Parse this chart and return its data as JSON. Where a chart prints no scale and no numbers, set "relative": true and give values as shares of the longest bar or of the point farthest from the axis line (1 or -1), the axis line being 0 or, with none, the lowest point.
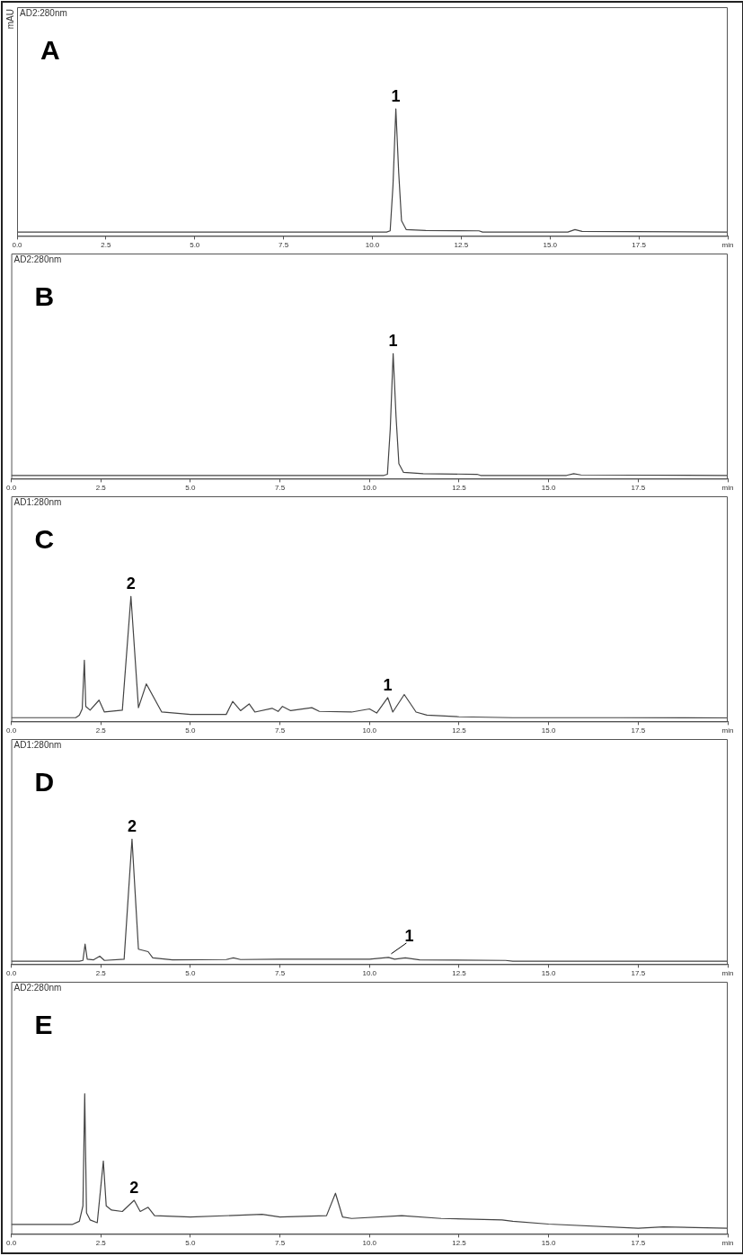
{
  "chart_data": [
    {
      "type": "line",
      "title": "A",
      "subtitle": "AD2:280nm",
      "ylabel": "mAU",
      "relative": true,
      "color": "#444444",
      "x": [
        0,
        10.4,
        10.5,
        10.58,
        10.66,
        10.74,
        10.82,
        10.95,
        11.5,
        13.0,
        13.1,
        15.5,
        15.7,
        15.9,
        20
      ],
      "values": [
        0.03,
        0.03,
        0.04,
        0.4,
        1,
        0.5,
        0.12,
        0.05,
        0.042,
        0.04,
        0.03,
        0.03,
        0.05,
        0.035,
        0.03
      ],
      "xlim": [
        0,
        20
      ],
      "xticks": [
        {
          "value": 0,
          "label": "0.0"
        },
        2.5,
        {
          "value": 5,
          "label": "5.0"
        },
        7.5,
        {
          "value": 10,
          "label": "10.0"
        },
        12.5,
        {
          "value": 15,
          "label": "15.0"
        },
        17.5,
        {
          "value": 20,
          "label": "min"
        }
      ],
      "annotations": [
        {
          "text": "1",
          "x": 10.66,
          "y": 1
        }
      ]
    },
    {
      "type": "line",
      "title": "B",
      "subtitle": "AD2:280nm",
      "relative": true,
      "color": "#444444",
      "x": [
        0,
        10.4,
        10.5,
        10.58,
        10.66,
        10.74,
        10.82,
        10.95,
        11.5,
        13.0,
        13.1,
        15.5,
        15.7,
        15.9,
        20
      ],
      "values": [
        0.026,
        0.026,
        0.035,
        0.4,
        1,
        0.5,
        0.12,
        0.05,
        0.04,
        0.035,
        0.026,
        0.026,
        0.04,
        0.03,
        0.026
      ],
      "xlim": [
        0,
        20
      ],
      "xticks": [
        {
          "value": 0,
          "label": "0.0"
        },
        2.5,
        {
          "value": 5,
          "label": "5.0"
        },
        7.5,
        {
          "value": 10,
          "label": "10.0"
        },
        12.5,
        {
          "value": 15,
          "label": "15.0"
        },
        17.5,
        {
          "value": 20,
          "label": "min"
        }
      ],
      "annotations": [
        {
          "text": "1",
          "x": 10.66,
          "y": 1
        }
      ]
    },
    {
      "type": "line",
      "title": "C",
      "subtitle": "AD1:280nm",
      "relative": true,
      "color": "#444444",
      "x": [
        0,
        1.8,
        1.9,
        1.98,
        2.04,
        2.08,
        2.2,
        2.45,
        2.6,
        3.1,
        3.34,
        3.55,
        3.77,
        4.2,
        5.0,
        6.0,
        6.18,
        6.4,
        6.64,
        6.8,
        7.28,
        7.45,
        7.57,
        7.8,
        8.39,
        8.6,
        9.5,
        10.0,
        10.2,
        10.51,
        10.65,
        10.97,
        11.3,
        11.6,
        12.5,
        14,
        17,
        20
      ],
      "values": [
        0.03,
        0.03,
        0.05,
        0.1,
        0.49,
        0.12,
        0.09,
        0.17,
        0.075,
        0.09,
        1,
        0.11,
        0.3,
        0.075,
        0.056,
        0.056,
        0.16,
        0.086,
        0.14,
        0.075,
        0.105,
        0.08,
        0.12,
        0.086,
        0.11,
        0.08,
        0.075,
        0.1,
        0.067,
        0.19,
        0.075,
        0.215,
        0.075,
        0.05,
        0.037,
        0.03,
        0.03,
        0.028
      ],
      "xlim": [
        0,
        20
      ],
      "xticks": [
        {
          "value": 0,
          "label": "0.0"
        },
        2.5,
        {
          "value": 5,
          "label": "5.0"
        },
        7.5,
        {
          "value": 10,
          "label": "10.0"
        },
        12.5,
        {
          "value": 15,
          "label": "15.0"
        },
        17.5,
        {
          "value": 20,
          "label": "min"
        }
      ],
      "annotations": [
        {
          "text": "2",
          "x": 3.34,
          "y": 1
        },
        {
          "text": "1",
          "x": 10.51,
          "y": 0.19
        }
      ]
    },
    {
      "type": "line",
      "title": "D",
      "subtitle": "AD1:280nm",
      "relative": true,
      "color": "#444444",
      "x": [
        0,
        1.9,
        2.0,
        2.06,
        2.12,
        2.3,
        2.47,
        2.6,
        3.15,
        3.37,
        3.55,
        3.82,
        3.95,
        4.5,
        6.0,
        6.2,
        6.4,
        7.5,
        10.0,
        10.53,
        10.7,
        11.0,
        11.4,
        13.8,
        14,
        20
      ],
      "values": [
        0.024,
        0.024,
        0.03,
        0.16,
        0.04,
        0.035,
        0.064,
        0.03,
        0.04,
        1,
        0.12,
        0.1,
        0.05,
        0.035,
        0.037,
        0.05,
        0.037,
        0.04,
        0.04,
        0.054,
        0.04,
        0.05,
        0.035,
        0.03,
        0.024,
        0.024
      ],
      "xlim": [
        0,
        20
      ],
      "xticks": [
        {
          "value": 0,
          "label": "0.0"
        },
        2.5,
        {
          "value": 5,
          "label": "5.0"
        },
        7.5,
        {
          "value": 10,
          "label": "10.0"
        },
        12.5,
        {
          "value": 15,
          "label": "15.0"
        },
        17.5,
        {
          "value": 20,
          "label": "min"
        }
      ],
      "annotations": [
        {
          "text": "2",
          "x": 3.37,
          "y": 1
        },
        {
          "text": "1",
          "x": 10.53,
          "y": 0.054
        }
      ]
    },
    {
      "type": "line",
      "title": "E",
      "subtitle": "AD2:280nm",
      "relative": true,
      "color": "#444444",
      "x": [
        0,
        1.7,
        1.9,
        2.0,
        2.05,
        2.1,
        2.2,
        2.4,
        2.57,
        2.65,
        2.8,
        3.1,
        3.43,
        3.6,
        3.82,
        4.0,
        5.0,
        7.0,
        7.5,
        8.8,
        9.05,
        9.25,
        9.5,
        10.9,
        12.0,
        13.7,
        14.0,
        15.0,
        17.5,
        18.2,
        20
      ],
      "values": [
        0.067,
        0.067,
        0.09,
        0.2,
        1,
        0.15,
        0.1,
        0.08,
        0.52,
        0.2,
        0.17,
        0.16,
        0.24,
        0.16,
        0.19,
        0.13,
        0.12,
        0.14,
        0.12,
        0.13,
        0.29,
        0.12,
        0.11,
        0.13,
        0.11,
        0.1,
        0.09,
        0.07,
        0.04,
        0.05,
        0.04
      ],
      "xlim": [
        0,
        20
      ],
      "xticks": [
        {
          "value": 0,
          "label": "0.0"
        },
        2.5,
        {
          "value": 5,
          "label": "5.0"
        },
        7.5,
        {
          "value": 10,
          "label": "10.0"
        },
        12.5,
        {
          "value": 15,
          "label": "15.0"
        },
        17.5,
        {
          "value": 20,
          "label": "min"
        }
      ],
      "annotations": [
        {
          "text": "2",
          "x": 3.43,
          "y": 0.24
        }
      ]
    }
  ]
}
